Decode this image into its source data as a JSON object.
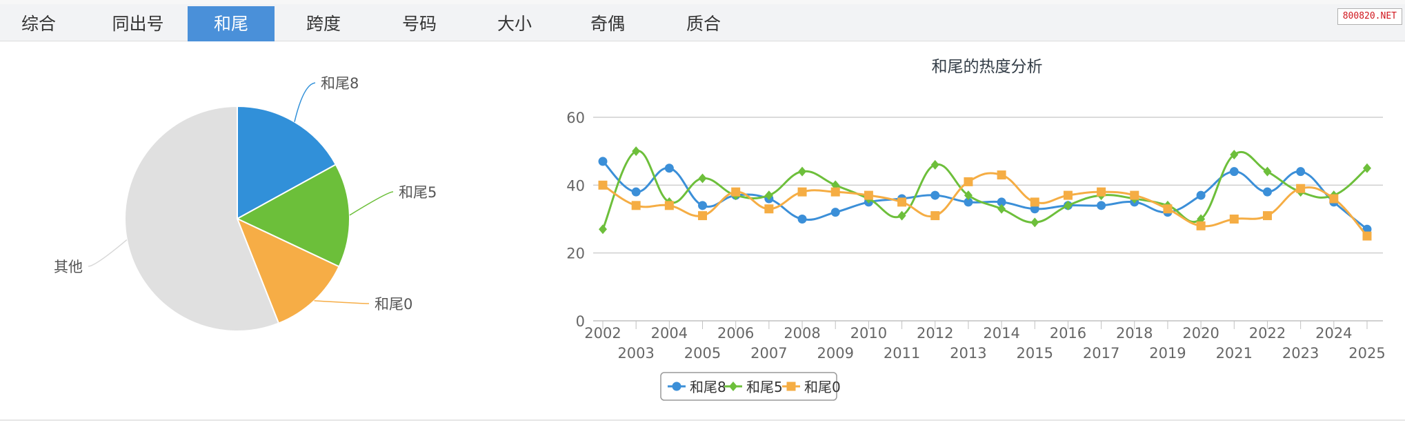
{
  "tabs": [
    {
      "label": "综合",
      "active": false
    },
    {
      "label": "同出号",
      "active": false
    },
    {
      "label": "和尾",
      "active": true
    },
    {
      "label": "跨度",
      "active": false
    },
    {
      "label": "号码",
      "active": false
    },
    {
      "label": "大小",
      "active": false
    },
    {
      "label": "奇偶",
      "active": false
    },
    {
      "label": "质合",
      "active": false
    }
  ],
  "watermark": "800820.NET",
  "colors": {
    "blue": "#3b8fd8",
    "green": "#6dbf3b",
    "orange": "#f5ad44",
    "gray": "#e0e0e0",
    "active_tab": "#4a90d9"
  },
  "chart_data": [
    {
      "type": "pie",
      "slices": [
        {
          "label": "和尾8",
          "value": 17,
          "color": "#3190d9"
        },
        {
          "label": "和尾5",
          "value": 15,
          "color": "#6cbf3a"
        },
        {
          "label": "和尾0",
          "value": 12,
          "color": "#f6ad46"
        },
        {
          "label": "其他",
          "value": 56,
          "color": "#e0e0e0"
        }
      ]
    },
    {
      "type": "line",
      "title": "和尾的热度分析",
      "x": [
        "2002",
        "2003",
        "2004",
        "2005",
        "2006",
        "2007",
        "2008",
        "2009",
        "2010",
        "2011",
        "2012",
        "2013",
        "2014",
        "2015",
        "2016",
        "2017",
        "2018",
        "2019",
        "2020",
        "2021",
        "2022",
        "2023",
        "2024",
        "2025"
      ],
      "ylim": [
        0,
        60
      ],
      "yticks": [
        0,
        20,
        40,
        60
      ],
      "grid": true,
      "legend": "bottom",
      "series": [
        {
          "name": "和尾8",
          "color": "#3b8fd8",
          "marker": "circle",
          "values": [
            47,
            38,
            45,
            34,
            37,
            36,
            30,
            32,
            35,
            36,
            37,
            35,
            35,
            33,
            34,
            34,
            35,
            32,
            37,
            44,
            38,
            44,
            35,
            27
          ]
        },
        {
          "name": "和尾5",
          "color": "#6dbf3b",
          "marker": "diamond",
          "values": [
            27,
            50,
            35,
            42,
            37,
            37,
            44,
            40,
            36,
            31,
            46,
            37,
            33,
            29,
            34,
            37,
            36,
            34,
            30,
            49,
            44,
            38,
            37,
            45
          ]
        },
        {
          "name": "和尾0",
          "color": "#f5ad44",
          "marker": "square",
          "values": [
            40,
            34,
            34,
            31,
            38,
            33,
            38,
            38,
            37,
            35,
            31,
            41,
            43,
            35,
            37,
            38,
            37,
            33,
            28,
            30,
            31,
            39,
            36,
            25
          ]
        }
      ]
    }
  ]
}
